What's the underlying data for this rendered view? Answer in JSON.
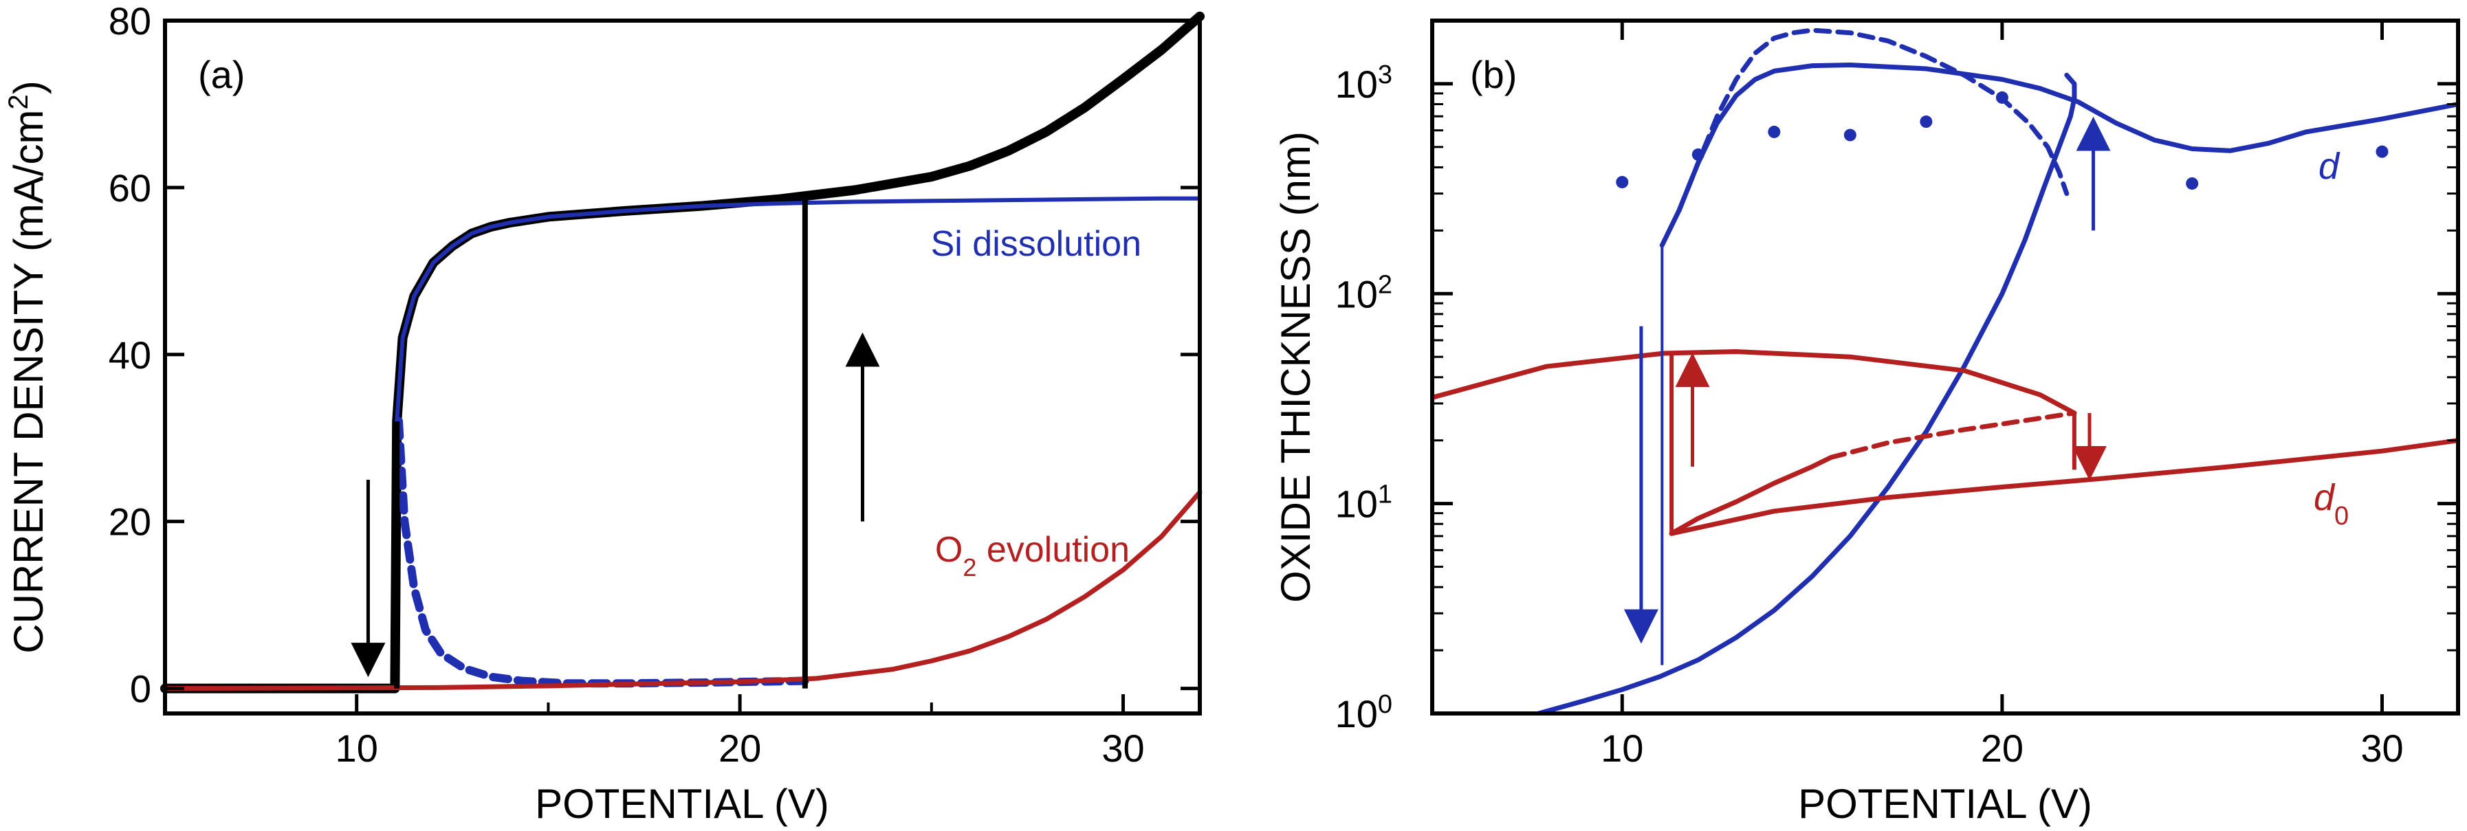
{
  "chart_data": [
    {
      "type": "line",
      "panel_label": "(a)",
      "xlabel": "POTENTIAL (V)",
      "ylabel_main": "CURRENT DENSITY (mA/cm",
      "ylabel_sup": "2",
      "ylabel_close": ")",
      "xlim": [
        5,
        32
      ],
      "ylim": [
        -3,
        80
      ],
      "xticks": [
        10,
        20,
        30
      ],
      "yticks": [
        0,
        20,
        40,
        60,
        80
      ],
      "colors": {
        "total": "#000000",
        "si": "#1f2fb0",
        "o2": "#b42020"
      },
      "series": [
        {
          "name": "total current",
          "x": [
            5,
            11,
            11.05,
            11.2,
            11.5,
            12,
            12.5,
            13,
            13.5,
            14,
            15,
            17,
            19,
            21,
            23,
            25,
            26,
            27,
            28,
            29,
            30,
            31,
            32
          ],
          "y": [
            0,
            0,
            32,
            42,
            47,
            51,
            53,
            54.5,
            55.3,
            55.8,
            56.5,
            57.2,
            57.8,
            58.6,
            59.7,
            61.3,
            62.6,
            64.4,
            66.7,
            69.6,
            73,
            76.5,
            80.5
          ]
        },
        {
          "name": "Si dissolution",
          "x": [
            11.05,
            11.2,
            11.5,
            12,
            12.5,
            13,
            13.5,
            14,
            15,
            17,
            19,
            21,
            23,
            25,
            27,
            29,
            31,
            32
          ],
          "y": [
            32,
            42,
            47,
            51,
            53,
            54.5,
            55.3,
            55.8,
            56.5,
            57.2,
            57.8,
            58.1,
            58.3,
            58.4,
            58.5,
            58.6,
            58.7,
            58.7
          ]
        },
        {
          "name": "Si dissolution (reverse)",
          "style": "dashed",
          "x": [
            11.1,
            11.25,
            11.5,
            11.8,
            12.2,
            12.8,
            13.5,
            14.3,
            15.5,
            17,
            19,
            21.7
          ],
          "y": [
            32,
            20,
            12,
            7,
            4.2,
            2.4,
            1.4,
            0.9,
            0.6,
            0.6,
            0.7,
            0.9
          ]
        },
        {
          "name": "O2 evolution",
          "x": [
            5,
            12,
            15,
            18,
            20,
            22,
            24,
            25,
            26,
            27,
            28,
            29,
            30,
            31,
            32
          ],
          "y": [
            0,
            0.1,
            0.3,
            0.6,
            0.8,
            1.2,
            2.3,
            3.3,
            4.5,
            6.2,
            8.3,
            11,
            14.2,
            18.2,
            23.5
          ]
        }
      ],
      "jumps": [
        {
          "x": 11.05,
          "y_from": 0,
          "y_to": 32
        },
        {
          "x": 21.7,
          "y_from": 0,
          "y_to": 58.6
        }
      ],
      "arrows": [
        {
          "x": 10.3,
          "y_from": 25,
          "y_to": 3,
          "direction": "down"
        },
        {
          "x": 23.2,
          "y_from": 20,
          "y_to": 41,
          "direction": "up"
        }
      ],
      "annotations": [
        {
          "text": "Si dissolution",
          "x": 26.5,
          "y": 53.5,
          "series": "si"
        },
        {
          "text_main": "O",
          "text_sub": "2",
          "text_rest": " evolution",
          "x": 26.3,
          "y": 15.8,
          "series": "o2"
        }
      ]
    },
    {
      "type": "line",
      "panel_label": "(b)",
      "xlabel": "POTENTIAL (V)",
      "ylabel": "OXIDE THICKNESS (nm)",
      "yscale": "log",
      "xlim": [
        5,
        32
      ],
      "ylim": [
        1,
        2000
      ],
      "xticks": [
        10,
        20,
        30
      ],
      "yticks_base": "10",
      "yticks_exp": [
        "0",
        "1",
        "2",
        "3"
      ],
      "colors": {
        "d": "#1f2fb0",
        "d0": "#b42020"
      },
      "series": [
        {
          "name": "d",
          "x": [
            11.05,
            11.5,
            12,
            12.5,
            13,
            13.5,
            14,
            15,
            16,
            18,
            20,
            21,
            22,
            23,
            24,
            25,
            26,
            27,
            28,
            30,
            32
          ],
          "y": [
            170,
            250,
            420,
            650,
            880,
            1050,
            1150,
            1220,
            1230,
            1180,
            1050,
            950,
            820,
            650,
            540,
            490,
            480,
            520,
            590,
            680,
            800
          ]
        },
        {
          "name": "d (dashed)",
          "style": "dashed",
          "x": [
            11.5,
            12,
            12.5,
            13,
            13.5,
            14,
            14.5,
            15,
            16,
            17,
            18,
            19,
            20,
            20.7,
            21.2,
            21.5,
            21.7
          ],
          "y": [
            250,
            420,
            700,
            1050,
            1400,
            1650,
            1750,
            1800,
            1750,
            1600,
            1350,
            1100,
            850,
            650,
            500,
            380,
            300
          ]
        },
        {
          "name": "d (reverse)",
          "x": [
            7.8,
            9,
            10,
            11,
            12,
            13,
            14,
            15,
            16,
            17,
            18,
            19,
            20,
            20.6,
            21.1,
            21.5,
            21.8,
            21.9,
            21.9,
            21.7
          ],
          "y": [
            1,
            1.15,
            1.3,
            1.5,
            1.8,
            2.3,
            3.1,
            4.5,
            7,
            12,
            22,
            45,
            100,
            180,
            320,
            500,
            700,
            850,
            1000,
            1100
          ]
        },
        {
          "name": "d0",
          "x": [
            5,
            8,
            11.1,
            13,
            16,
            19,
            21,
            21.9
          ],
          "y": [
            32,
            45,
            52,
            53,
            50,
            43,
            33,
            27
          ]
        },
        {
          "name": "d0 (reverse)",
          "x": [
            11.3,
            14,
            17,
            20,
            22.3,
            26,
            30,
            32
          ],
          "y": [
            7.2,
            9.2,
            10.7,
            12,
            13,
            15,
            17.8,
            20
          ]
        },
        {
          "name": "d0 (branch)",
          "x": [
            11.3,
            12,
            13,
            14,
            15,
            15.5
          ],
          "y": [
            7.2,
            8.5,
            10.2,
            12.5,
            15,
            16.6
          ]
        },
        {
          "name": "d0 (dashed)",
          "style": "dashed",
          "x": [
            15.5,
            17,
            19,
            21,
            21.9
          ],
          "y": [
            16.6,
            19.5,
            22.5,
            25.5,
            27
          ]
        }
      ],
      "points": {
        "name": "d measured",
        "x": [
          10,
          12,
          14,
          16,
          18,
          20,
          25,
          30
        ],
        "y": [
          340,
          460,
          590,
          570,
          660,
          860,
          335,
          475
        ]
      },
      "jumps": [
        {
          "x": 11.05,
          "y_from": 1.7,
          "y_to": 170,
          "series": "d"
        },
        {
          "x": 11.3,
          "y_from": 7.2,
          "y_to": 52,
          "series": "d0"
        },
        {
          "x": 21.9,
          "y_from": 14.5,
          "y_to": 27,
          "series": "d0"
        }
      ],
      "arrows": [
        {
          "x": 10.5,
          "y_from": 70,
          "y_to": 2.5,
          "direction": "down",
          "series": "d"
        },
        {
          "x": 22.4,
          "y_from": 200,
          "y_to": 600,
          "direction": "up",
          "series": "d"
        },
        {
          "x": 11.85,
          "y_from": 15,
          "y_to": 45,
          "direction": "up",
          "series": "d0"
        },
        {
          "x": 22.3,
          "y_from": 27,
          "y_to": 15,
          "direction": "down",
          "series": "d0"
        }
      ],
      "annotations": [
        {
          "text": "d",
          "x": 26.3,
          "y": 900,
          "series": "d"
        },
        {
          "text_main": "d",
          "text_sub": "0",
          "x": 25.5,
          "y": 9,
          "series": "d0"
        }
      ]
    }
  ]
}
